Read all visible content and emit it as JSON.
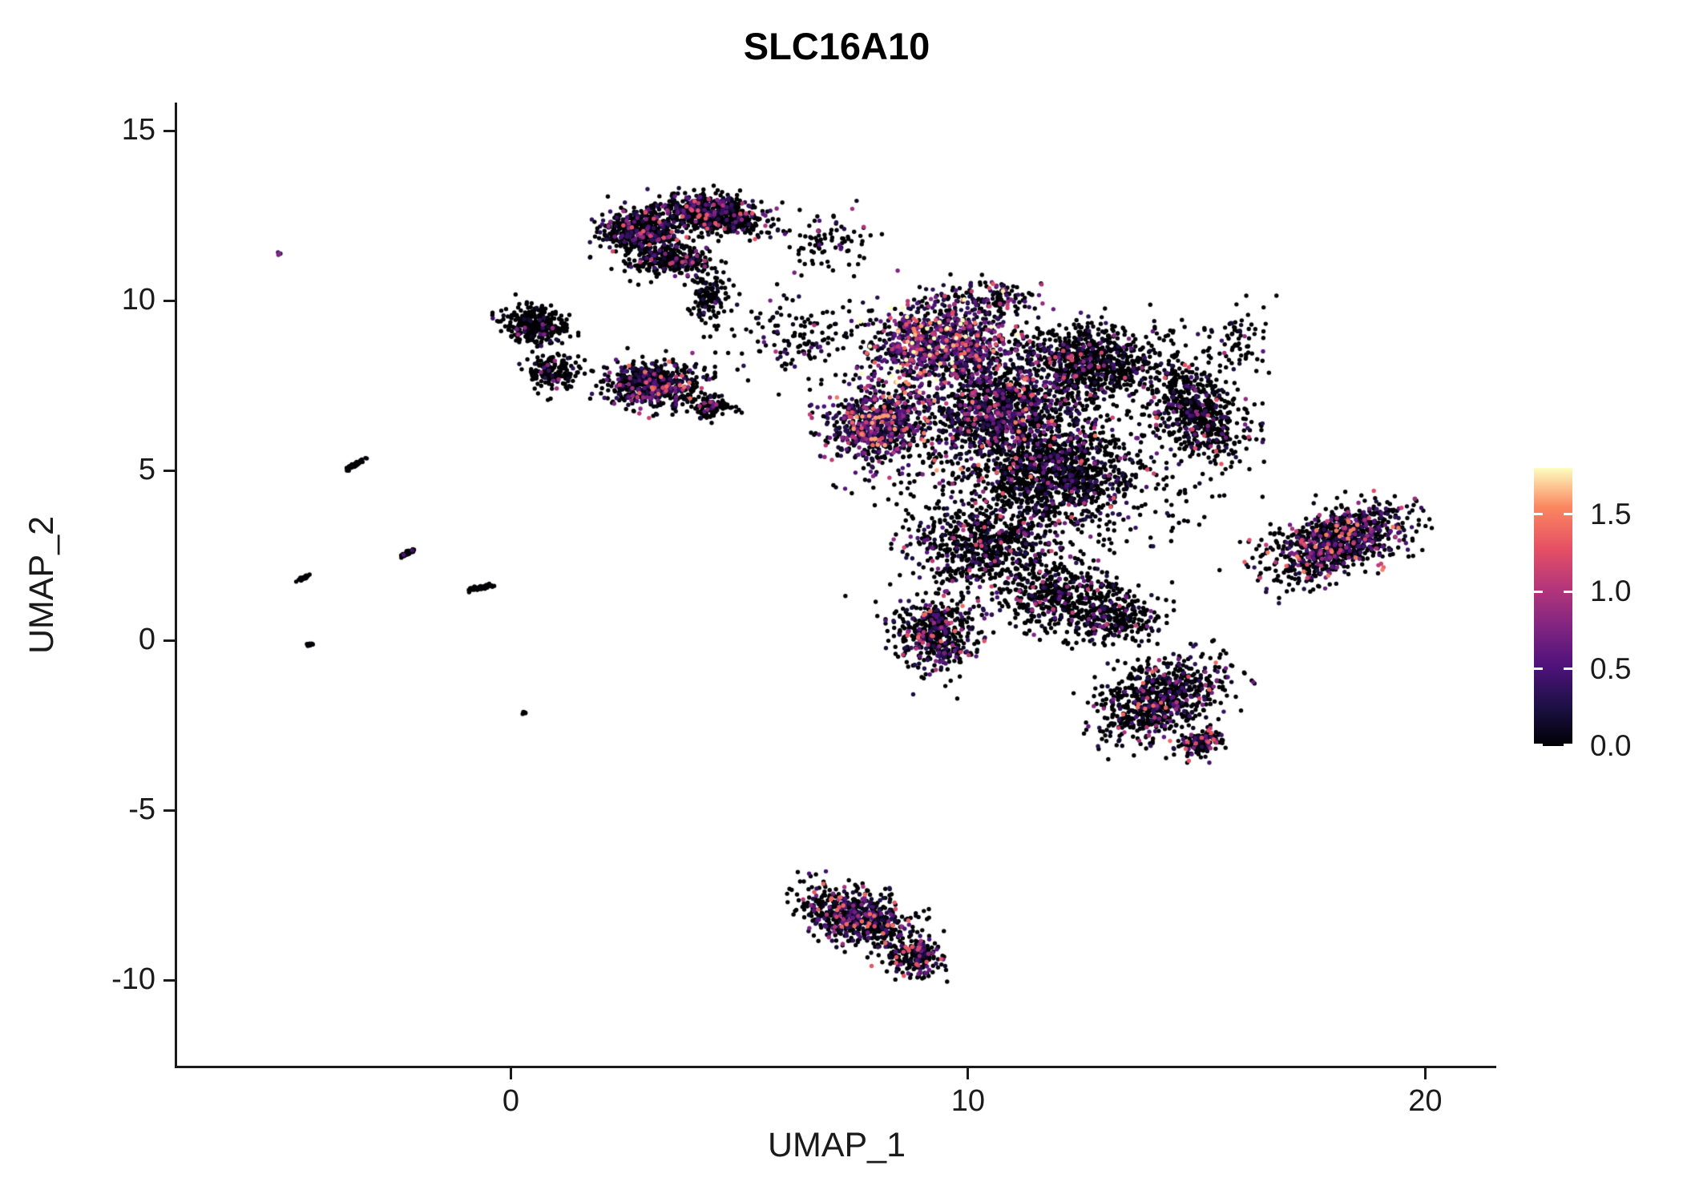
{
  "title": "SLC16A10",
  "axes": {
    "x": {
      "label": "UMAP_1",
      "ticks": [
        {
          "label": "0",
          "value": 0
        },
        {
          "label": "10",
          "value": 10
        },
        {
          "label": "20",
          "value": 20
        }
      ]
    },
    "y": {
      "label": "UMAP_2",
      "ticks": [
        {
          "label": "15",
          "value": 15
        },
        {
          "label": "10",
          "value": 10
        },
        {
          "label": "5",
          "value": 5
        },
        {
          "label": "0",
          "value": 0
        },
        {
          "label": "-5",
          "value": -5
        },
        {
          "label": "-10",
          "value": -10
        }
      ]
    }
  },
  "legend": {
    "min": 0,
    "max": 1.8,
    "ticks": [
      {
        "label": "1.5",
        "value": 1.5
      },
      {
        "label": "1.0",
        "value": 1.0
      },
      {
        "label": "0.5",
        "value": 0.5
      },
      {
        "label": "0.0",
        "value": 0.0
      }
    ]
  },
  "colormap": {
    "name": "magma",
    "stops": [
      {
        "t": 0.0,
        "color": "#000004"
      },
      {
        "t": 0.14,
        "color": "#1c1044"
      },
      {
        "t": 0.29,
        "color": "#4f127b"
      },
      {
        "t": 0.43,
        "color": "#812581"
      },
      {
        "t": 0.57,
        "color": "#b5367a"
      },
      {
        "t": 0.71,
        "color": "#e55064"
      },
      {
        "t": 0.86,
        "color": "#fb8761"
      },
      {
        "t": 1.0,
        "color": "#fcfdbf"
      }
    ]
  },
  "chart_data": {
    "type": "scatter",
    "title": "SLC16A10",
    "xlabel": "UMAP_1",
    "ylabel": "UMAP_2",
    "xlim": [
      -7.3,
      21.5
    ],
    "ylim": [
      -12.5,
      15.8
    ],
    "grid": false,
    "legend_position": "right",
    "color_scale": {
      "min": 0,
      "max": 1.8,
      "breaks": [
        0.0,
        0.5,
        1.0,
        1.5
      ],
      "palette": "magma"
    },
    "clusters": [
      {
        "name": "top-lobe-left",
        "cx": 2.9,
        "cy": 12.1,
        "rx": 0.9,
        "ry": 0.65,
        "rot": 0,
        "n": 520,
        "frac_pos": 0.32,
        "expr_scale": 0.45,
        "expr_max": 1.3
      },
      {
        "name": "top-lobe-right",
        "cx": 4.4,
        "cy": 12.6,
        "rx": 1.15,
        "ry": 0.55,
        "rot": -8,
        "n": 600,
        "frac_pos": 0.3,
        "expr_scale": 0.45,
        "expr_max": 1.3
      },
      {
        "name": "top-fringe-bottom",
        "cx": 3.5,
        "cy": 11.2,
        "rx": 1.0,
        "ry": 0.45,
        "rot": 0,
        "n": 260,
        "frac_pos": 0.22,
        "expr_scale": 0.4,
        "expr_max": 1.1
      },
      {
        "name": "top-tail",
        "cx": 4.3,
        "cy": 10.2,
        "rx": 0.45,
        "ry": 0.75,
        "rot": 0,
        "n": 130,
        "frac_pos": 0.15,
        "expr_scale": 0.4,
        "expr_max": 1.0
      },
      {
        "name": "upper-left-a",
        "cx": 0.5,
        "cy": 9.3,
        "rx": 0.75,
        "ry": 0.55,
        "rot": 0,
        "n": 300,
        "frac_pos": 0.1,
        "expr_scale": 0.35,
        "expr_max": 0.9
      },
      {
        "name": "upper-left-b",
        "cx": 0.9,
        "cy": 7.9,
        "rx": 0.55,
        "ry": 0.5,
        "rot": 0,
        "n": 170,
        "frac_pos": 0.12,
        "expr_scale": 0.35,
        "expr_max": 0.9
      },
      {
        "name": "mid-left",
        "cx": 3.1,
        "cy": 7.5,
        "rx": 1.05,
        "ry": 0.65,
        "rot": 0,
        "n": 600,
        "frac_pos": 0.38,
        "expr_scale": 0.5,
        "expr_max": 1.4
      },
      {
        "name": "mid-left-tail",
        "cx": 4.4,
        "cy": 6.9,
        "rx": 0.5,
        "ry": 0.35,
        "rot": 0,
        "n": 100,
        "frac_pos": 0.2,
        "expr_scale": 0.4,
        "expr_max": 1.0
      },
      {
        "name": "core-high",
        "cx": 9.4,
        "cy": 8.8,
        "rx": 1.5,
        "ry": 1.2,
        "rot": 0,
        "n": 950,
        "frac_pos": 0.75,
        "expr_scale": 0.55,
        "expr_max": 1.8
      },
      {
        "name": "core-high-left",
        "cx": 8.1,
        "cy": 6.4,
        "rx": 1.2,
        "ry": 1.2,
        "rot": 0,
        "n": 750,
        "frac_pos": 0.65,
        "expr_scale": 0.5,
        "expr_max": 1.6
      },
      {
        "name": "core-mid",
        "cx": 10.7,
        "cy": 6.8,
        "rx": 1.6,
        "ry": 1.5,
        "rot": 0,
        "n": 1100,
        "frac_pos": 0.45,
        "expr_scale": 0.45,
        "expr_max": 1.5
      },
      {
        "name": "core-upper-right",
        "cx": 12.7,
        "cy": 8.2,
        "rx": 1.4,
        "ry": 1.1,
        "rot": 0,
        "n": 800,
        "frac_pos": 0.22,
        "expr_scale": 0.4,
        "expr_max": 1.2
      },
      {
        "name": "right-arm",
        "cx": 15.0,
        "cy": 6.8,
        "rx": 0.9,
        "ry": 1.5,
        "rot": 20,
        "n": 600,
        "frac_pos": 0.22,
        "expr_scale": 0.4,
        "expr_max": 1.3
      },
      {
        "name": "core-center",
        "cx": 12.0,
        "cy": 4.9,
        "rx": 1.8,
        "ry": 1.3,
        "rot": 0,
        "n": 1000,
        "frac_pos": 0.28,
        "expr_scale": 0.4,
        "expr_max": 1.3
      },
      {
        "name": "core-low",
        "cx": 10.4,
        "cy": 2.8,
        "rx": 1.6,
        "ry": 1.2,
        "rot": 0,
        "n": 650,
        "frac_pos": 0.25,
        "expr_scale": 0.4,
        "expr_max": 1.2
      },
      {
        "name": "low-left-knob",
        "cx": 9.3,
        "cy": 0.2,
        "rx": 0.85,
        "ry": 1.1,
        "rot": 0,
        "n": 480,
        "frac_pos": 0.35,
        "expr_scale": 0.5,
        "expr_max": 1.4
      },
      {
        "name": "low-mid",
        "cx": 11.9,
        "cy": 1.3,
        "rx": 1.3,
        "ry": 1.0,
        "rot": 0,
        "n": 420,
        "frac_pos": 0.2,
        "expr_scale": 0.4,
        "expr_max": 1.1
      },
      {
        "name": "bottom-right-lobe",
        "cx": 14.2,
        "cy": -1.7,
        "rx": 1.5,
        "ry": 1.0,
        "rot": 35,
        "n": 750,
        "frac_pos": 0.3,
        "expr_scale": 0.5,
        "expr_max": 1.4
      },
      {
        "name": "bottom-right-tail",
        "cx": 15.1,
        "cy": -3.0,
        "rx": 0.55,
        "ry": 0.4,
        "rot": 30,
        "n": 130,
        "frac_pos": 0.35,
        "expr_scale": 0.5,
        "expr_max": 1.3
      },
      {
        "name": "connector",
        "cx": 13.2,
        "cy": 0.7,
        "rx": 1.0,
        "ry": 0.8,
        "rot": 0,
        "n": 280,
        "frac_pos": 0.2,
        "expr_scale": 0.4,
        "expr_max": 1.1
      },
      {
        "name": "right-cluster",
        "cx": 18.1,
        "cy": 2.9,
        "rx": 1.6,
        "ry": 0.85,
        "rot": 28,
        "n": 950,
        "frac_pos": 0.4,
        "expr_scale": 0.5,
        "expr_max": 1.5
      },
      {
        "name": "bottom-cluster",
        "cx": 7.6,
        "cy": -8.1,
        "rx": 1.3,
        "ry": 0.8,
        "rot": -20,
        "n": 600,
        "frac_pos": 0.42,
        "expr_scale": 0.5,
        "expr_max": 1.4
      },
      {
        "name": "bottom-cluster-tail",
        "cx": 8.8,
        "cy": -9.3,
        "rx": 0.7,
        "ry": 0.55,
        "rot": 0,
        "n": 200,
        "frac_pos": 0.4,
        "expr_scale": 0.5,
        "expr_max": 1.3
      },
      {
        "name": "top-fringe-core",
        "cx": 10.5,
        "cy": 10.1,
        "rx": 1.4,
        "ry": 0.5,
        "rot": 0,
        "n": 130,
        "frac_pos": 0.35,
        "expr_scale": 0.5,
        "expr_max": 1.4
      },
      {
        "name": "halo-sparse",
        "cx": 11.5,
        "cy": 5.0,
        "rx": 3.8,
        "ry": 3.4,
        "rot": 0,
        "n": 550,
        "frac_pos": 0.2,
        "expr_scale": 0.4,
        "expr_max": 1.2
      },
      {
        "name": "bridge-left",
        "cx": 6.3,
        "cy": 9.0,
        "rx": 1.6,
        "ry": 1.3,
        "rot": 0,
        "n": 150,
        "frac_pos": 0.2,
        "expr_scale": 0.4,
        "expr_max": 1.0
      },
      {
        "name": "bridge-top",
        "cx": 6.9,
        "cy": 11.7,
        "rx": 1.2,
        "ry": 0.8,
        "rot": 0,
        "n": 90,
        "frac_pos": 0.15,
        "expr_scale": 0.4,
        "expr_max": 1.0
      },
      {
        "name": "right-top-sparse",
        "cx": 15.8,
        "cy": 8.8,
        "rx": 0.8,
        "ry": 0.9,
        "rot": 0,
        "n": 80,
        "frac_pos": 0.15,
        "expr_scale": 0.4,
        "expr_max": 1.0
      },
      {
        "name": "streak-a",
        "cx": -3.4,
        "cy": 5.2,
        "rx": 0.28,
        "ry": 0.05,
        "rot": 38,
        "n": 45,
        "frac_pos": 0.02,
        "expr_scale": 0.3,
        "expr_max": 0.6
      },
      {
        "name": "streak-b",
        "cx": -2.25,
        "cy": 2.6,
        "rx": 0.22,
        "ry": 0.05,
        "rot": 38,
        "n": 40,
        "frac_pos": 0.02,
        "expr_scale": 0.3,
        "expr_max": 0.6
      },
      {
        "name": "streak-c",
        "cx": -4.55,
        "cy": 1.85,
        "rx": 0.2,
        "ry": 0.04,
        "rot": 32,
        "n": 30,
        "frac_pos": 0.02,
        "expr_scale": 0.3,
        "expr_max": 0.6
      },
      {
        "name": "streak-d",
        "cx": -0.75,
        "cy": 1.55,
        "rx": 0.3,
        "ry": 0.06,
        "rot": 14,
        "n": 45,
        "frac_pos": 0.02,
        "expr_scale": 0.3,
        "expr_max": 0.6
      },
      {
        "name": "dot-a",
        "cx": -4.4,
        "cy": -0.1,
        "rx": 0.08,
        "ry": 0.05,
        "rot": 30,
        "n": 12,
        "frac_pos": 0.02,
        "expr_scale": 0.3,
        "expr_max": 0.6
      },
      {
        "name": "dot-b",
        "cx": 0.3,
        "cy": -2.1,
        "rx": 0.05,
        "ry": 0.04,
        "rot": 0,
        "n": 6,
        "frac_pos": 0.0,
        "expr_scale": 0.3,
        "expr_max": 0.6
      },
      {
        "name": "dot-purple",
        "cx": -5.05,
        "cy": 11.4,
        "rx": 0.07,
        "ry": 0.05,
        "rot": 0,
        "n": 4,
        "frac_pos": 0.9,
        "expr_scale": 0.5,
        "expr_max": 0.9
      }
    ]
  },
  "render_hints": {
    "seed": 20240601,
    "point_radius": 2.7
  }
}
